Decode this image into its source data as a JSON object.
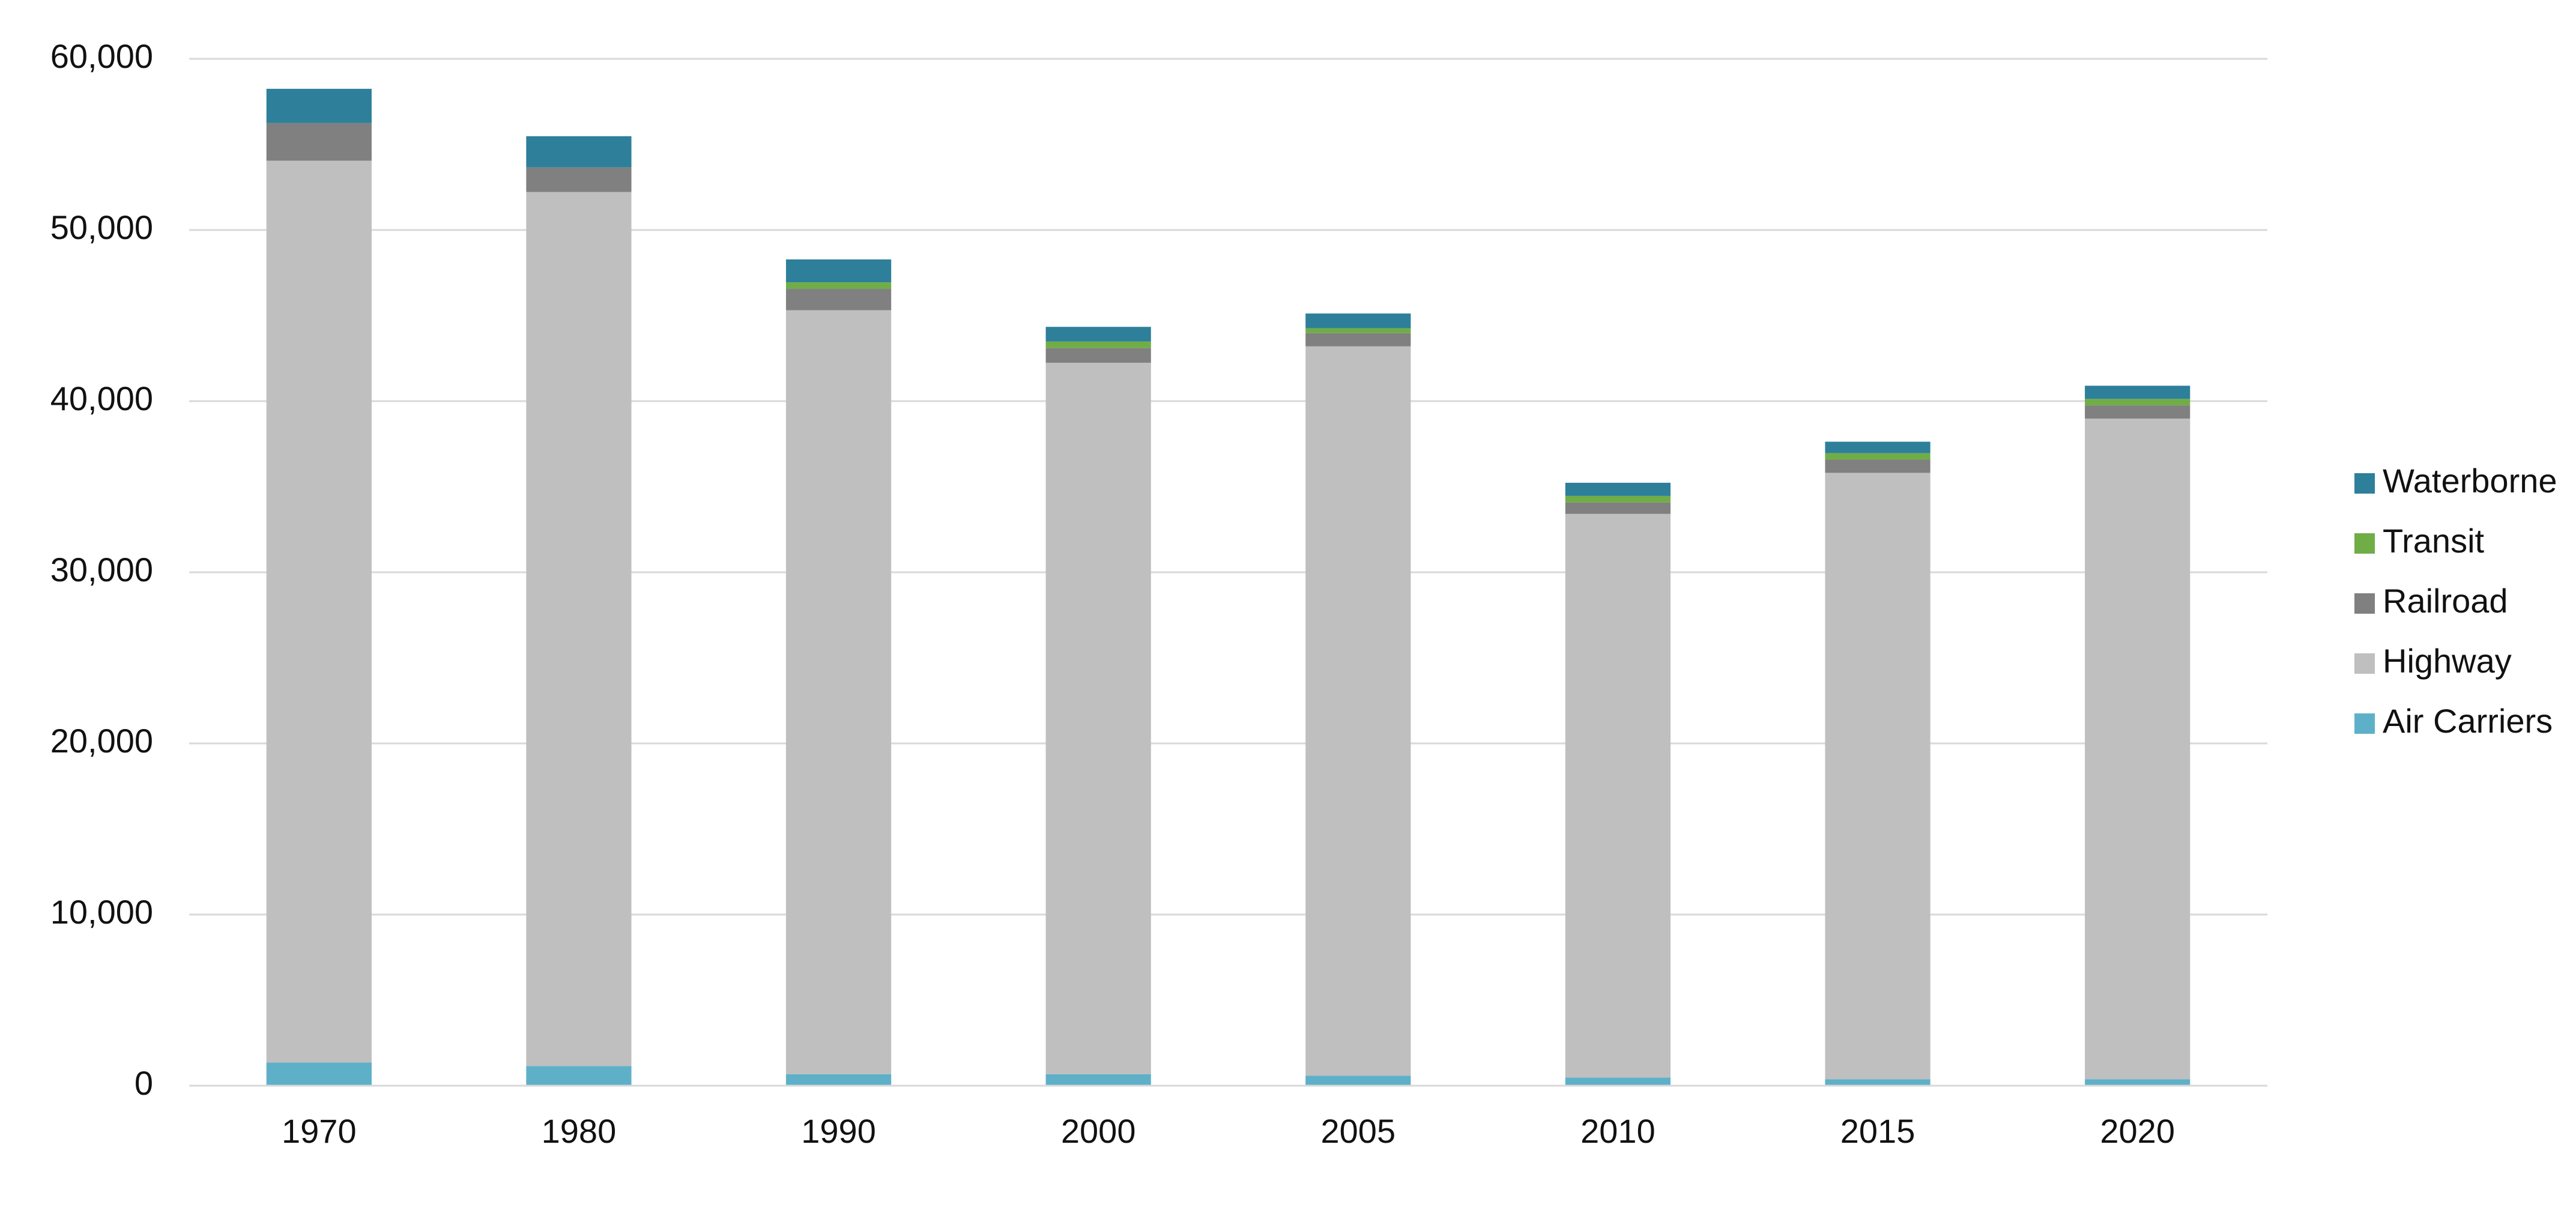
{
  "chart_data": {
    "type": "stacked-bar",
    "categories": [
      "1970",
      "1980",
      "1990",
      "2000",
      "2005",
      "2010",
      "2015",
      "2020"
    ],
    "series": [
      {
        "name": "Air Carriers",
        "color": "#5eb0c8",
        "values": [
          1350,
          1150,
          670,
          670,
          580,
          480,
          380,
          380
        ]
      },
      {
        "name": "Highway",
        "color": "#bfbfbf",
        "values": [
          52700,
          51070,
          44640,
          41570,
          42620,
          32930,
          35430,
          38600
        ]
      },
      {
        "name": "Railroad",
        "color": "#808080",
        "values": [
          2200,
          1440,
          1250,
          860,
          770,
          670,
          770,
          770
        ]
      },
      {
        "name": "Transit",
        "color": "#70ad47",
        "values": [
          0,
          0,
          380,
          380,
          290,
          380,
          380,
          380
        ]
      },
      {
        "name": "Waterborne",
        "color": "#2e7f9a",
        "values": [
          2000,
          1820,
          1340,
          860,
          860,
          770,
          670,
          770
        ]
      }
    ],
    "ylim": [
      0,
      60000
    ],
    "yticks": [
      0,
      {
        "value": 10000,
        "label": "10,000"
      },
      {
        "value": 20000,
        "label": "20,000"
      },
      {
        "value": 30000,
        "label": "30,000"
      },
      {
        "value": 40000,
        "label": "40,000"
      },
      {
        "value": 50000,
        "label": "50,000"
      },
      {
        "value": 60000,
        "label": "60,000"
      }
    ],
    "grid": true,
    "legend": "right"
  }
}
